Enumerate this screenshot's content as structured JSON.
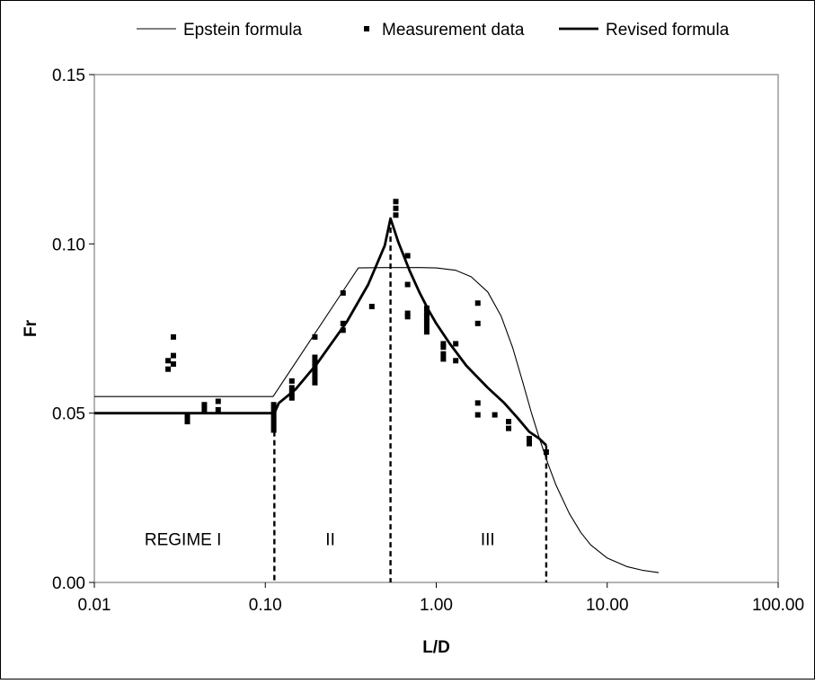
{
  "chart_data": {
    "type": "scatter",
    "xlabel": "L/D",
    "ylabel": "Fr",
    "xscale": "log",
    "xlim": [
      0.01,
      100
    ],
    "ylim": [
      0,
      0.15
    ],
    "x_ticks": [
      "0.01",
      "0.10",
      "1.00",
      "10.00",
      "100.00"
    ],
    "y_ticks": [
      "0.00",
      "0.05",
      "0.10",
      "0.15"
    ],
    "grid": false,
    "legend_position": "top",
    "legend": [
      "Epstein formula",
      "Measurement data",
      "Revised formula"
    ],
    "series": [
      {
        "name": "Epstein formula",
        "style": "thin-line",
        "points": [
          [
            0.01,
            0.0549
          ],
          [
            0.111,
            0.0549
          ],
          [
            0.35,
            0.0929
          ],
          [
            0.5,
            0.093
          ],
          [
            0.8,
            0.093
          ],
          [
            1.0,
            0.0929
          ],
          [
            1.3,
            0.0922
          ],
          [
            1.6,
            0.0903
          ],
          [
            2.0,
            0.0858
          ],
          [
            2.4,
            0.0786
          ],
          [
            2.8,
            0.0693
          ],
          [
            3.2,
            0.0593
          ],
          [
            3.6,
            0.0502
          ],
          [
            4.0,
            0.0428
          ],
          [
            4.5,
            0.0351
          ],
          [
            5.0,
            0.0289
          ],
          [
            6.0,
            0.0204
          ],
          [
            7.0,
            0.0148
          ],
          [
            8.0,
            0.0111
          ],
          [
            10.0,
            0.0072
          ],
          [
            13.0,
            0.0047
          ],
          [
            16.0,
            0.0036
          ],
          [
            20.0,
            0.0029
          ]
        ]
      },
      {
        "name": "Measurement data",
        "style": "square-markers",
        "points": [
          [
            0.027,
            0.063
          ],
          [
            0.027,
            0.0655
          ],
          [
            0.029,
            0.0645
          ],
          [
            0.029,
            0.067
          ],
          [
            0.029,
            0.0725
          ],
          [
            0.035,
            0.0475
          ],
          [
            0.035,
            0.049
          ],
          [
            0.044,
            0.051
          ],
          [
            0.044,
            0.0525
          ],
          [
            0.053,
            0.051
          ],
          [
            0.053,
            0.0535
          ],
          [
            0.112,
            0.045
          ],
          [
            0.112,
            0.0465
          ],
          [
            0.112,
            0.048
          ],
          [
            0.112,
            0.0495
          ],
          [
            0.112,
            0.051
          ],
          [
            0.112,
            0.0525
          ],
          [
            0.143,
            0.0545
          ],
          [
            0.143,
            0.056
          ],
          [
            0.143,
            0.0575
          ],
          [
            0.143,
            0.0595
          ],
          [
            0.195,
            0.059
          ],
          [
            0.195,
            0.0605
          ],
          [
            0.195,
            0.062
          ],
          [
            0.195,
            0.0635
          ],
          [
            0.195,
            0.065
          ],
          [
            0.195,
            0.0665
          ],
          [
            0.195,
            0.0725
          ],
          [
            0.285,
            0.0745
          ],
          [
            0.285,
            0.0765
          ],
          [
            0.285,
            0.0855
          ],
          [
            0.42,
            0.0815
          ],
          [
            0.58,
            0.1085
          ],
          [
            0.58,
            0.1105
          ],
          [
            0.58,
            0.1125
          ],
          [
            0.68,
            0.0785
          ],
          [
            0.68,
            0.0795
          ],
          [
            0.68,
            0.088
          ],
          [
            0.68,
            0.0965
          ],
          [
            0.88,
            0.074
          ],
          [
            0.88,
            0.0755
          ],
          [
            0.88,
            0.077
          ],
          [
            0.88,
            0.0785
          ],
          [
            0.88,
            0.0795
          ],
          [
            0.88,
            0.081
          ],
          [
            1.1,
            0.066
          ],
          [
            1.1,
            0.0675
          ],
          [
            1.1,
            0.0695
          ],
          [
            1.1,
            0.0705
          ],
          [
            1.3,
            0.0655
          ],
          [
            1.3,
            0.0705
          ],
          [
            1.75,
            0.0495
          ],
          [
            1.75,
            0.053
          ],
          [
            1.75,
            0.0765
          ],
          [
            1.75,
            0.0825
          ],
          [
            2.2,
            0.0495
          ],
          [
            2.65,
            0.0455
          ],
          [
            2.65,
            0.0475
          ],
          [
            3.5,
            0.041
          ],
          [
            3.5,
            0.0425
          ],
          [
            4.4,
            0.0385
          ]
        ]
      },
      {
        "name": "Revised formula",
        "style": "thick-line",
        "points": [
          [
            0.01,
            0.05
          ],
          [
            0.113,
            0.05
          ],
          [
            0.12,
            0.053
          ],
          [
            0.15,
            0.057
          ],
          [
            0.2,
            0.0645
          ],
          [
            0.3,
            0.077
          ],
          [
            0.4,
            0.088
          ],
          [
            0.5,
            0.0995
          ],
          [
            0.54,
            0.1075
          ],
          [
            0.6,
            0.1005
          ],
          [
            0.7,
            0.092
          ],
          [
            0.8,
            0.0855
          ],
          [
            0.9,
            0.0805
          ],
          [
            1.0,
            0.0765
          ],
          [
            1.2,
            0.0705
          ],
          [
            1.5,
            0.064
          ],
          [
            2.0,
            0.0575
          ],
          [
            2.5,
            0.053
          ],
          [
            3.0,
            0.0485
          ],
          [
            3.5,
            0.0445
          ],
          [
            4.0,
            0.0425
          ],
          [
            4.4,
            0.0405
          ]
        ]
      }
    ],
    "regime_boundaries": [
      0.113,
      0.54,
      4.4
    ],
    "regime_labels": [
      {
        "text": "REGIME I",
        "x": 0.033,
        "y": 0.011
      },
      {
        "text": "II",
        "x": 0.24,
        "y": 0.011
      },
      {
        "text": "III",
        "x": 2.0,
        "y": 0.011
      }
    ]
  }
}
